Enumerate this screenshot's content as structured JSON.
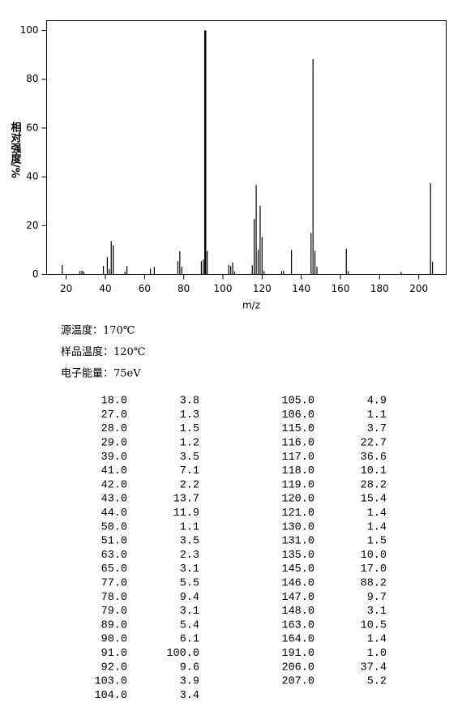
{
  "chart_data": {
    "type": "bar",
    "xlabel": "m/z",
    "ylabel": "相对强度/%",
    "x": [
      18,
      27,
      28,
      29,
      39,
      41,
      42,
      43,
      44,
      50,
      51,
      63,
      65,
      77,
      78,
      79,
      89,
      90,
      91,
      92,
      103,
      104,
      105,
      106,
      115,
      116,
      117,
      118,
      119,
      120,
      121,
      130,
      131,
      135,
      145,
      146,
      147,
      148,
      163,
      164,
      191,
      206,
      207
    ],
    "values": [
      3.8,
      1.3,
      1.5,
      1.2,
      3.5,
      7.1,
      2.2,
      13.7,
      11.9,
      1.1,
      3.5,
      2.3,
      3.1,
      5.5,
      9.4,
      3.1,
      5.4,
      6.1,
      100.0,
      9.6,
      3.9,
      3.4,
      4.9,
      1.1,
      3.7,
      22.7,
      36.6,
      10.1,
      28.2,
      15.4,
      1.4,
      1.4,
      1.5,
      10.0,
      17.0,
      88.2,
      9.7,
      3.1,
      10.5,
      1.4,
      1.0,
      37.4,
      5.2
    ],
    "color": "#000000",
    "xlim": [
      10,
      214
    ],
    "xticks": [
      20,
      40,
      60,
      80,
      100,
      120,
      140,
      160,
      180,
      200
    ],
    "ylim": [
      0,
      104
    ],
    "yticks": [
      0,
      20,
      40,
      60,
      80,
      100
    ],
    "grid": false
  },
  "conditions": [
    "源温度：170℃",
    "样品温度：120℃",
    "电子能量：75eV"
  ],
  "table": {
    "rows": [
      [
        "18.0",
        "3.8"
      ],
      [
        "27.0",
        "1.3"
      ],
      [
        "28.0",
        "1.5"
      ],
      [
        "29.0",
        "1.2"
      ],
      [
        "39.0",
        "3.5"
      ],
      [
        "41.0",
        "7.1"
      ],
      [
        "42.0",
        "2.2"
      ],
      [
        "43.0",
        "13.7"
      ],
      [
        "44.0",
        "11.9"
      ],
      [
        "50.0",
        "1.1"
      ],
      [
        "51.0",
        "3.5"
      ],
      [
        "63.0",
        "2.3"
      ],
      [
        "65.0",
        "3.1"
      ],
      [
        "77.0",
        "5.5"
      ],
      [
        "78.0",
        "9.4"
      ],
      [
        "79.0",
        "3.1"
      ],
      [
        "89.0",
        "5.4"
      ],
      [
        "90.0",
        "6.1"
      ],
      [
        "91.0",
        "100.0"
      ],
      [
        "92.0",
        "9.6"
      ],
      [
        "103.0",
        "3.9"
      ],
      [
        "104.0",
        "3.4"
      ],
      [
        "105.0",
        "4.9"
      ],
      [
        "106.0",
        "1.1"
      ],
      [
        "115.0",
        "3.7"
      ],
      [
        "116.0",
        "22.7"
      ],
      [
        "117.0",
        "36.6"
      ],
      [
        "118.0",
        "10.1"
      ],
      [
        "119.0",
        "28.2"
      ],
      [
        "120.0",
        "15.4"
      ],
      [
        "121.0",
        "1.4"
      ],
      [
        "130.0",
        "1.4"
      ],
      [
        "131.0",
        "1.5"
      ],
      [
        "135.0",
        "10.0"
      ],
      [
        "145.0",
        "17.0"
      ],
      [
        "146.0",
        "88.2"
      ],
      [
        "147.0",
        "9.7"
      ],
      [
        "148.0",
        "3.1"
      ],
      [
        "163.0",
        "10.5"
      ],
      [
        "164.0",
        "1.4"
      ],
      [
        "191.0",
        "1.0"
      ],
      [
        "206.0",
        "37.4"
      ],
      [
        "207.0",
        "5.2"
      ]
    ]
  }
}
